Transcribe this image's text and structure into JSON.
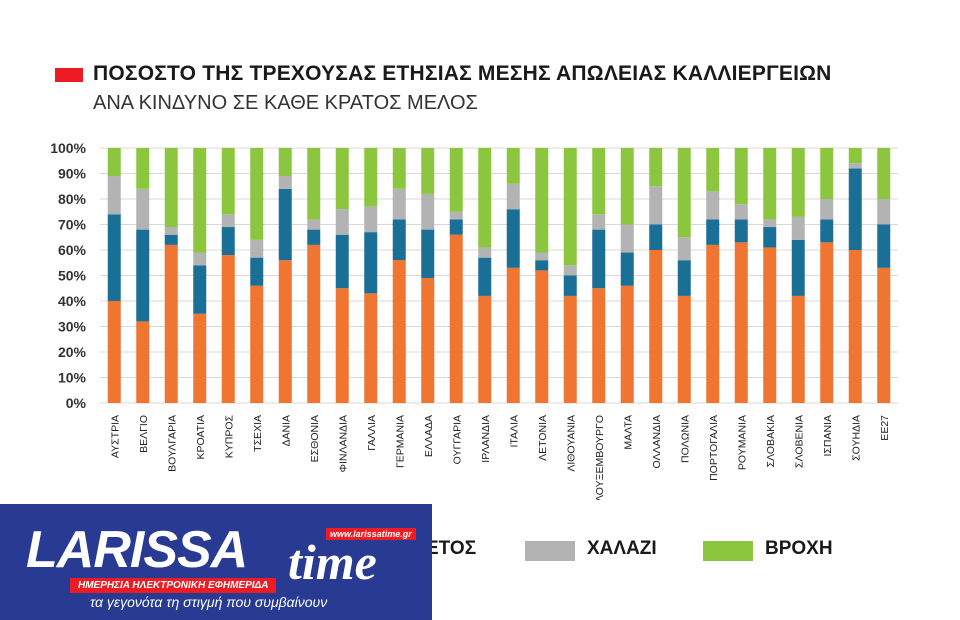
{
  "colors": {
    "title_swatch": "#ed1c24",
    "series": [
      "#f07530",
      "#1a6f96",
      "#b3b3b3",
      "#8cc63f"
    ],
    "logo_bg": "#283a92",
    "logo_accent": "#ed1c24"
  },
  "logo": {
    "main_text": "LARISSA",
    "time_text": "time",
    "url": "www.larissatime.gr",
    "band_text": "ΗΜΕΡΗΣΙΑ ΗΛΕΚΤΡΟΝΙΚΗ ΕΦΗΜΕΡΙΔΑ",
    "tagline": "τα γεγονότα τη στιγμή που συμβαίνουν"
  },
  "chart_data": {
    "type": "bar",
    "stacked": true,
    "title": "ΠΟΣΟΣΤΟ ΤΗΣ ΤΡΕΧΟΥΣΑΣ ΕΤΗΣΙΑΣ ΜΕΣΗΣ ΑΠΩΛΕΙΑΣ ΚΑΛΛΙΕΡΓΕΙΩΝ",
    "subtitle": "ΑΝΑ ΚΙΝΔΥΝΟ ΣΕ ΚΑΘΕ ΚΡΑΤΟΣ ΜΕΛΟΣ",
    "xlabel": "",
    "ylabel": "",
    "ylim": [
      0,
      100
    ],
    "yticks": [
      "0%",
      "10%",
      "20%",
      "30%",
      "40%",
      "50%",
      "60%",
      "70%",
      "80%",
      "90%",
      "100%"
    ],
    "grid": true,
    "legend": "bottom",
    "categories": [
      "ΑΥΣΤΡΙΑ",
      "ΒΕΛΓΙΟ",
      "ΒΟΥΛΓΑΡΙΑ",
      "ΚΡΟΑΤΙΑ",
      "ΚΥΠΡΟΣ",
      "ΤΣΕΧΙΑ",
      "ΔΑΝΙΑ",
      "ΕΣΘΟΝΙΑ",
      "ΦΙΝΛΑΝΔΙΑ",
      "ΓΑΛΛΙΑ",
      "ΓΕΡΜΑΝΙΑ",
      "ΕΛΛΑΔΑ",
      "ΟΥΓΓΑΡΙΑ",
      "ΙΡΛΑΝΔΙΑ",
      "ΙΤΑΛΙΑ",
      "ΛΕΤΟΝΙΑ",
      "ΛΙΘΟΥΑΝΙΑ",
      "ΛΟΥΞΕΜΒΟΥΡΓΟ",
      "ΜΑΛΤΑ",
      "ΟΛΛΑΝΔΙΑ",
      "ΠΟΛΩΝΙΑ",
      "ΠΟΡΤΟΓΑΛΙΑ",
      "ΡΟΥΜΑΝΙΑ",
      "ΣΛΟΒΑΚΙΑ",
      "ΣΛΟΒΕΝΙΑ",
      "ΙΣΠΑΝΙΑ",
      "ΣΟΥΗΔΙΑ",
      "ΕΕ27"
    ],
    "series": [
      {
        "name": "",
        "values": [
          40,
          32,
          62,
          35,
          58,
          46,
          56,
          62,
          45,
          43,
          56,
          49,
          66,
          42,
          53,
          52,
          42,
          45,
          46,
          60,
          42,
          62,
          63,
          61,
          42,
          63,
          60,
          53
        ]
      },
      {
        "name": "",
        "values": [
          34,
          36,
          4,
          19,
          11,
          11,
          28,
          6,
          21,
          24,
          16,
          19,
          6,
          15,
          23,
          4,
          8,
          23,
          13,
          10,
          14,
          10,
          9,
          8,
          22,
          9,
          32,
          17
        ]
      },
      {
        "name": "ΧΑΛΑΖΙ",
        "values": [
          15,
          16,
          3,
          5,
          5,
          7,
          5,
          4,
          10,
          10,
          12,
          14,
          3,
          4,
          10,
          3,
          4,
          6,
          11,
          15,
          9,
          11,
          6,
          3,
          9,
          8,
          2,
          10
        ]
      },
      {
        "name": "ΒΡΟΧΗ",
        "values": [
          11,
          16,
          31,
          41,
          26,
          36,
          11,
          28,
          24,
          23,
          16,
          18,
          25,
          39,
          14,
          41,
          46,
          26,
          30,
          15,
          35,
          17,
          22,
          28,
          27,
          20,
          6,
          20
        ]
      }
    ],
    "legend_partial_text": "ΕΤΟΣ"
  }
}
